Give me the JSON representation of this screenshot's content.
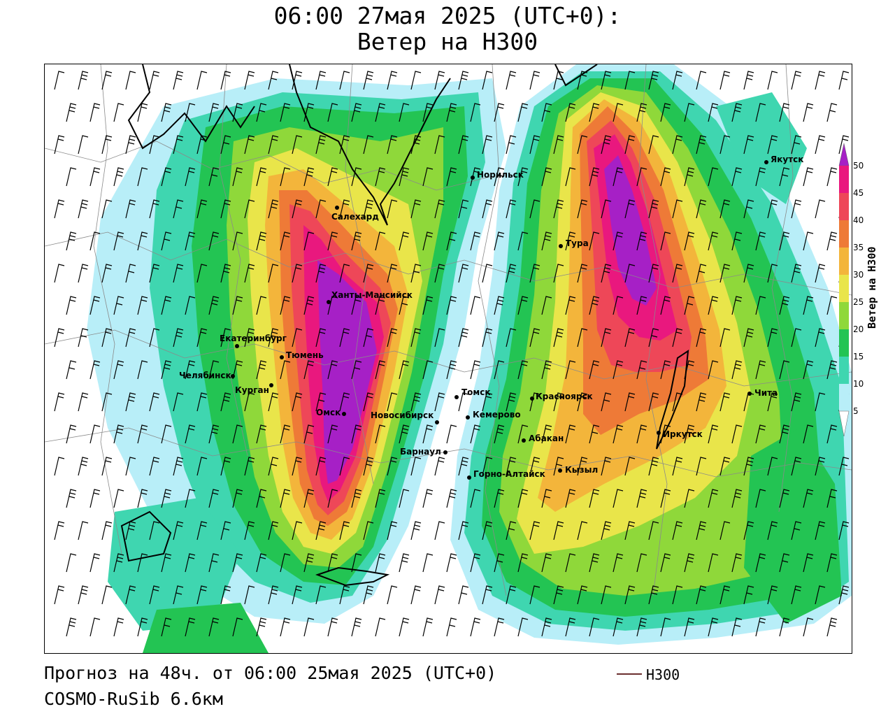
{
  "title": {
    "line1": "06:00 27мая 2025 (UTC+0):",
    "line2": "Ветер на H300"
  },
  "footer": {
    "forecast": "Прогноз на 48ч. от 06:00 25мая 2025 (UTC+0)",
    "model": "COSMO-RuSib 6.6км"
  },
  "legend": {
    "line_label": "H300",
    "line_color": "#6b2f2f"
  },
  "colorbar": {
    "title": "Ветер на H300",
    "ticks": [
      "5",
      "10",
      "15",
      "20",
      "25",
      "30",
      "35",
      "40",
      "45",
      "50"
    ],
    "colors": [
      "#ffffff",
      "#b8eef8",
      "#3fd6b0",
      "#23c453",
      "#8fd83a",
      "#e9e54a",
      "#f3b53b",
      "#ee7a37",
      "#ee4758",
      "#e9187e",
      "#a620c6"
    ]
  },
  "cities": [
    {
      "name": "Якутск"
    },
    {
      "name": "Норильск"
    },
    {
      "name": "Салехард"
    },
    {
      "name": "Тура"
    },
    {
      "name": "Ханты-Мансийск"
    },
    {
      "name": "Екатеринбург"
    },
    {
      "name": "Тюмень"
    },
    {
      "name": "Челябинск"
    },
    {
      "name": "Курган"
    },
    {
      "name": "Омск"
    },
    {
      "name": "Новосибирск"
    },
    {
      "name": "Томск"
    },
    {
      "name": "Кемерово"
    },
    {
      "name": "Красноярск"
    },
    {
      "name": "Барнаул"
    },
    {
      "name": "Абакан"
    },
    {
      "name": "Иркутск"
    },
    {
      "name": "Чита"
    },
    {
      "name": "Кызыл"
    },
    {
      "name": "Горно-Алтайск"
    }
  ]
}
